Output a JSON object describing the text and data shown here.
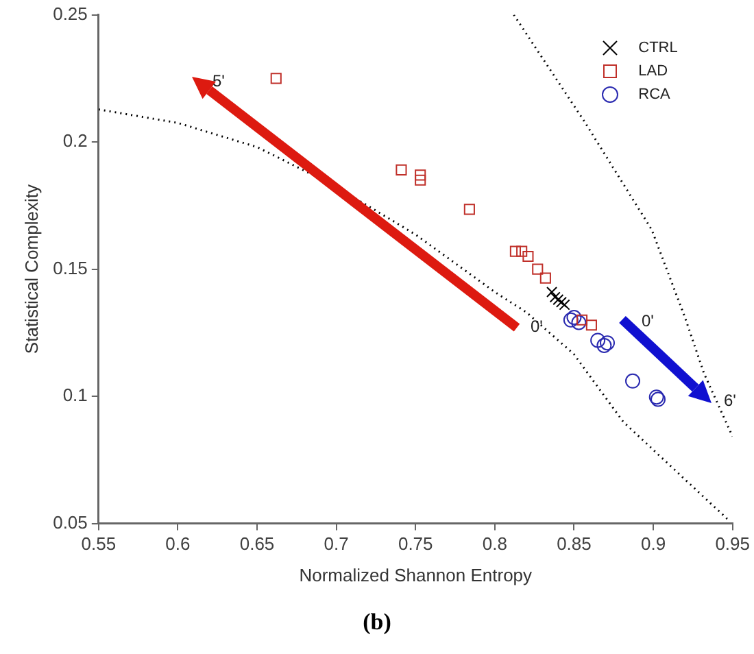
{
  "chart_data": {
    "type": "scatter",
    "xlabel": "Normalized Shannon Entropy",
    "ylabel": "Statistical Complexity",
    "xlim": [
      0.55,
      0.95
    ],
    "xticks": [
      0.55,
      0.6,
      0.65,
      0.7,
      0.75,
      0.8,
      0.85,
      0.9,
      0.95
    ],
    "ylim": [
      0.05,
      0.25
    ],
    "yticks": [
      0.05,
      0.1,
      0.15,
      0.2,
      0.25
    ],
    "grid": false,
    "legend": "top right",
    "series": [
      {
        "name": "CTRL",
        "color": "#000000",
        "marker": "cross",
        "x": [
          0.836,
          0.838,
          0.84,
          0.842,
          0.844
        ],
        "values": [
          0.141,
          0.139,
          0.138,
          0.137,
          0.136
        ]
      },
      {
        "name": "LAD",
        "color": "#c0302a",
        "marker": "square",
        "x": [
          0.662,
          0.741,
          0.753,
          0.753,
          0.784,
          0.813,
          0.817,
          0.821,
          0.827,
          0.832,
          0.855,
          0.861
        ],
        "values": [
          0.225,
          0.189,
          0.187,
          0.185,
          0.1735,
          0.157,
          0.157,
          0.155,
          0.15,
          0.1465,
          0.13,
          0.128
        ]
      },
      {
        "name": "RCA",
        "color": "#2a2ab0",
        "marker": "circle",
        "x": [
          0.848,
          0.85,
          0.853,
          0.865,
          0.869,
          0.871,
          0.887,
          0.902,
          0.903
        ],
        "values": [
          0.13,
          0.131,
          0.129,
          0.122,
          0.12,
          0.121,
          0.106,
          0.0997,
          0.0988
        ]
      },
      {
        "type": "line",
        "color": "#000000",
        "marker": "none",
        "line_style": "dotted",
        "x": [
          0.55,
          0.6,
          0.65,
          0.687,
          0.717,
          0.75,
          0.8,
          0.82,
          0.85,
          0.881,
          0.947
        ],
        "values": [
          0.2128,
          0.2075,
          0.198,
          0.1865,
          0.176,
          0.1636,
          0.141,
          0.133,
          0.1165,
          0.09,
          0.0516
        ]
      },
      {
        "type": "line",
        "color": "#000000",
        "marker": "none",
        "line_style": "dotted",
        "x": [
          0.812,
          0.857,
          0.899,
          0.92,
          0.932,
          0.95
        ],
        "values": [
          0.25,
          0.2076,
          0.1655,
          0.131,
          0.109,
          0.0842
        ]
      }
    ],
    "annotations": [
      "0'",
      "5'",
      "0'",
      "6'",
      "(b)"
    ]
  }
}
